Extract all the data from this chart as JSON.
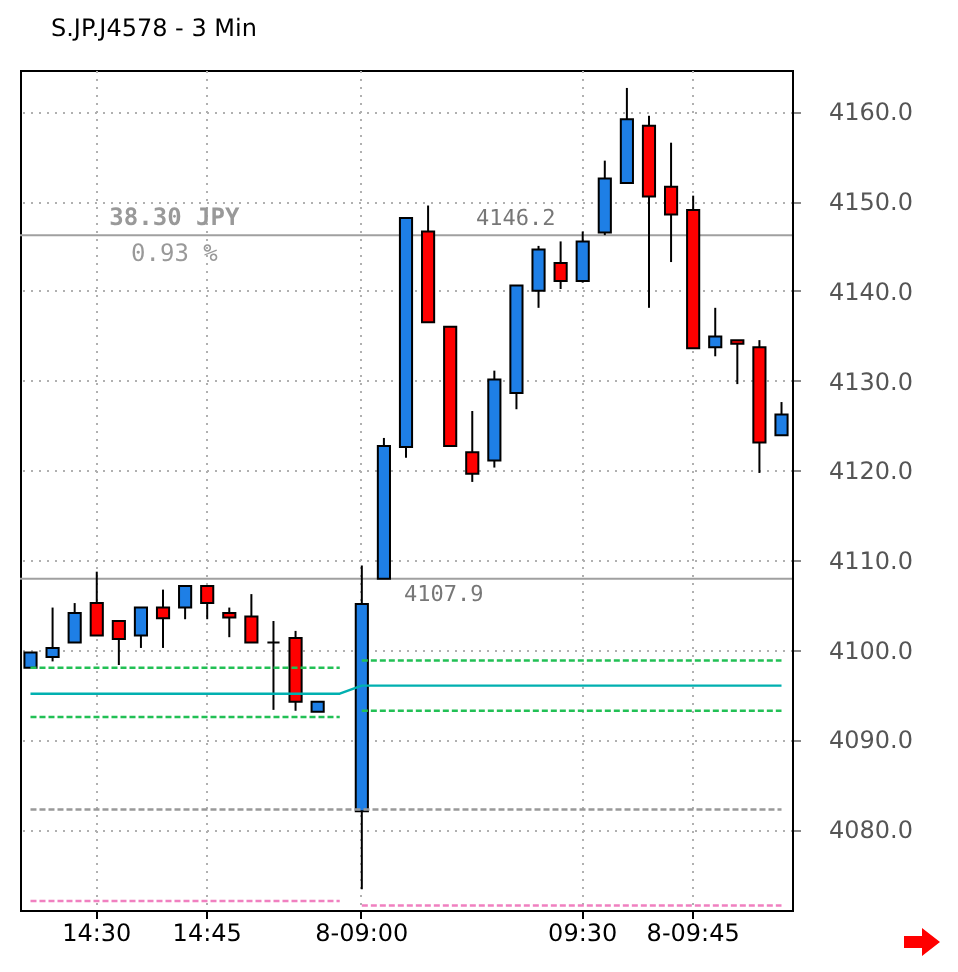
{
  "chart_data": {
    "type": "candlestick",
    "title": "S.JP.J4578 - 3 Min",
    "categories": [
      null,
      null,
      null,
      "14:30",
      null,
      null,
      null,
      null,
      "14:45",
      null,
      null,
      null,
      null,
      null,
      null,
      "8-09:00",
      null,
      null,
      null,
      null,
      null,
      null,
      null,
      null,
      null,
      "09:30",
      null,
      null,
      null,
      null,
      "8-09:45",
      null,
      null,
      null,
      null
    ],
    "ohlc": [
      [
        4098.0,
        4099.7,
        4098.0,
        4099.7
      ],
      [
        4099.2,
        4104.7,
        4098.7,
        4100.2
      ],
      [
        4100.8,
        4105.2,
        4100.8,
        4104.1
      ],
      [
        4105.2,
        4108.7,
        4101.6,
        4101.6
      ],
      [
        4103.2,
        4103.2,
        4098.3,
        4101.2
      ],
      [
        4101.6,
        4104.7,
        4100.2,
        4104.7
      ],
      [
        4104.7,
        4106.7,
        4100.2,
        4103.5
      ],
      [
        4104.7,
        4107.1,
        4103.4,
        4107.1
      ],
      [
        4107.1,
        4107.1,
        4103.4,
        4105.2
      ],
      [
        4104.1,
        4104.7,
        4101.4,
        4103.6
      ],
      [
        4103.7,
        4106.2,
        4100.8,
        4100.8
      ],
      [
        4100.8,
        4103.2,
        4093.3,
        4100.8
      ],
      [
        4101.3,
        4102.1,
        4093.2,
        4094.2
      ],
      [
        4093.1,
        4094.2,
        4093.1,
        4094.2
      ],
      null,
      [
        4082.0,
        4109.4,
        4073.3,
        4105.1
      ],
      [
        4107.9,
        4123.6,
        4107.9,
        4122.7
      ],
      [
        4122.6,
        4148.1,
        4121.4,
        4148.1
      ],
      [
        4146.6,
        4149.5,
        4136.5,
        4136.5
      ],
      [
        4136.0,
        4136.0,
        4122.7,
        4122.7
      ],
      [
        4122.0,
        4126.6,
        4118.7,
        4119.6
      ],
      [
        4121.1,
        4131.1,
        4120.3,
        4130.1
      ],
      [
        4128.6,
        4140.6,
        4126.8,
        4140.6
      ],
      [
        4140.0,
        4145.0,
        4138.1,
        4144.6
      ],
      [
        4143.1,
        4145.5,
        4140.2,
        4141.1
      ],
      [
        4141.1,
        4146.6,
        4140.9,
        4145.5
      ],
      [
        4146.5,
        4154.5,
        4146.2,
        4152.5
      ],
      [
        4152.0,
        4162.6,
        4152.0,
        4159.1
      ],
      [
        4158.4,
        4159.5,
        4138.1,
        4150.5
      ],
      [
        4151.6,
        4156.5,
        4143.2,
        4148.5
      ],
      [
        4149.0,
        4150.6,
        4133.6,
        4133.6
      ],
      [
        4133.7,
        4138.1,
        4132.7,
        4134.9
      ],
      [
        4134.5,
        4134.5,
        4129.6,
        4134.1
      ],
      [
        4133.7,
        4134.5,
        4119.7,
        4123.1
      ],
      [
        4123.9,
        4127.6,
        4123.9,
        4126.2
      ]
    ],
    "colors": [
      "#1e7fe6",
      "#1e7fe6",
      "#1e7fe6",
      "#ff0000",
      "#ff0000",
      "#1e7fe6",
      "#ff0000",
      "#1e7fe6",
      "#ff0000",
      "#ff0000",
      "#ff0000",
      "#000000",
      "#ff0000",
      "#1e7fe6",
      null,
      "#1e7fe6",
      "#1e7fe6",
      "#1e7fe6",
      "#ff0000",
      "#ff0000",
      "#ff0000",
      "#1e7fe6",
      "#1e7fe6",
      "#1e7fe6",
      "#ff0000",
      "#1e7fe6",
      "#1e7fe6",
      "#1e7fe6",
      "#ff0000",
      "#ff0000",
      "#ff0000",
      "#1e7fe6",
      "#ff0000",
      "#ff0000",
      "#1e7fe6"
    ],
    "series": [
      {
        "type": "line",
        "color": "#00b0b0",
        "line_style": "solid",
        "values": [
          4095.1,
          4095.1,
          4095.1,
          4095.1,
          4095.1,
          4095.1,
          4095.1,
          4095.1,
          4095.1,
          4095.1,
          4095.1,
          4095.1,
          4095.1,
          4095.1,
          4095.1,
          4096.0,
          4096.0,
          4096.0,
          4096.0,
          4096.0,
          4096.0,
          4096.0,
          4096.0,
          4096.0,
          4096.0,
          4096.0,
          4096.0,
          4096.0,
          4096.0,
          4096.0,
          4096.0,
          4096.0,
          4096.0,
          4096.0,
          4096.0
        ]
      },
      {
        "type": "line",
        "color": "#22c055",
        "line_style": "dashed",
        "values": [
          4098.0,
          4098.0,
          4098.0,
          4098.0,
          4098.0,
          4098.0,
          4098.0,
          4098.0,
          4098.0,
          4098.0,
          4098.0,
          4098.0,
          4098.0,
          4098.0,
          4098.0,
          null,
          null,
          null,
          null,
          null,
          null,
          null,
          null,
          null,
          null,
          null,
          null,
          null,
          null,
          null,
          null,
          null,
          null,
          null,
          null
        ]
      },
      {
        "type": "line",
        "color": "#22c055",
        "line_style": "dashed",
        "values": [
          4092.5,
          4092.5,
          4092.5,
          4092.5,
          4092.5,
          4092.5,
          4092.5,
          4092.5,
          4092.5,
          4092.5,
          4092.5,
          4092.5,
          4092.5,
          4092.5,
          4092.5,
          null,
          null,
          null,
          null,
          null,
          null,
          null,
          null,
          null,
          null,
          null,
          null,
          null,
          null,
          null,
          null,
          null,
          null,
          null,
          null
        ]
      },
      {
        "type": "line",
        "color": "#22c055",
        "line_style": "dashed",
        "values": [
          null,
          null,
          null,
          null,
          null,
          null,
          null,
          null,
          null,
          null,
          null,
          null,
          null,
          null,
          null,
          4098.8,
          4098.8,
          4098.8,
          4098.8,
          4098.8,
          4098.8,
          4098.8,
          4098.8,
          4098.8,
          4098.8,
          4098.8,
          4098.8,
          4098.8,
          4098.8,
          4098.8,
          4098.8,
          4098.8,
          4098.8,
          4098.8,
          4098.8
        ]
      },
      {
        "type": "line",
        "color": "#22c055",
        "line_style": "dashed",
        "values": [
          null,
          null,
          null,
          null,
          null,
          null,
          null,
          null,
          null,
          null,
          null,
          null,
          null,
          null,
          null,
          4093.2,
          4093.2,
          4093.2,
          4093.2,
          4093.2,
          4093.2,
          4093.2,
          4093.2,
          4093.2,
          4093.2,
          4093.2,
          4093.2,
          4093.2,
          4093.2,
          4093.2,
          4093.2,
          4093.2,
          4093.2,
          4093.2,
          4093.2
        ]
      },
      {
        "type": "line",
        "color": "#999999",
        "line_style": "dashed",
        "values": [
          4082.2,
          4082.2,
          4082.2,
          4082.2,
          4082.2,
          4082.2,
          4082.2,
          4082.2,
          4082.2,
          4082.2,
          4082.2,
          4082.2,
          4082.2,
          4082.2,
          4082.2,
          4082.2,
          4082.2,
          4082.2,
          4082.2,
          4082.2,
          4082.2,
          4082.2,
          4082.2,
          4082.2,
          4082.2,
          4082.2,
          4082.2,
          4082.2,
          4082.2,
          4082.2,
          4082.2,
          4082.2,
          4082.2,
          4082.2,
          4082.2
        ]
      },
      {
        "type": "line",
        "color": "#f080c0",
        "line_style": "dashed",
        "values": [
          4072.0,
          4072.0,
          4072.0,
          4072.0,
          4072.0,
          4072.0,
          4072.0,
          4072.0,
          4072.0,
          4072.0,
          4072.0,
          4072.0,
          4072.0,
          4072.0,
          4072.0,
          null,
          null,
          null,
          null,
          null,
          null,
          null,
          null,
          null,
          null,
          null,
          null,
          null,
          null,
          null,
          null,
          null,
          null,
          null,
          null
        ]
      },
      {
        "type": "line",
        "color": "#f080c0",
        "line_style": "dashed",
        "values": [
          null,
          null,
          null,
          null,
          null,
          null,
          null,
          null,
          null,
          null,
          null,
          null,
          null,
          null,
          null,
          4071.5,
          4071.5,
          4071.5,
          4071.5,
          4071.5,
          4071.5,
          4071.5,
          4071.5,
          4071.5,
          4071.5,
          4071.5,
          4071.5,
          4071.5,
          4071.5,
          4071.5,
          4071.5,
          4071.5,
          4071.5,
          4071.5,
          4071.5
        ]
      }
    ],
    "ref_lines": [
      {
        "axis": "y",
        "value": 4146.2,
        "label": "4146.2",
        "color": "#a0a0a0"
      },
      {
        "axis": "y",
        "value": 4107.9,
        "label": "4107.9",
        "color": "#a0a0a0"
      }
    ],
    "annotations": [
      "38.30 JPY",
      "0.93 %"
    ],
    "ylim": [
      4071.0,
      4164.6
    ],
    "yticks": [
      {
        "value": 4080,
        "label": "4080.0"
      },
      {
        "value": 4090,
        "label": "4090.0"
      },
      {
        "value": 4100,
        "label": "4100.0"
      },
      {
        "value": 4110,
        "label": "4110.0"
      },
      {
        "value": 4120,
        "label": "4120.0"
      },
      {
        "value": 4130,
        "label": "4130.0"
      },
      {
        "value": 4140,
        "label": "4140.0"
      },
      {
        "value": 4150,
        "label": "4150.0"
      },
      {
        "value": 4160,
        "label": "4160.0"
      }
    ],
    "grid": true
  }
}
